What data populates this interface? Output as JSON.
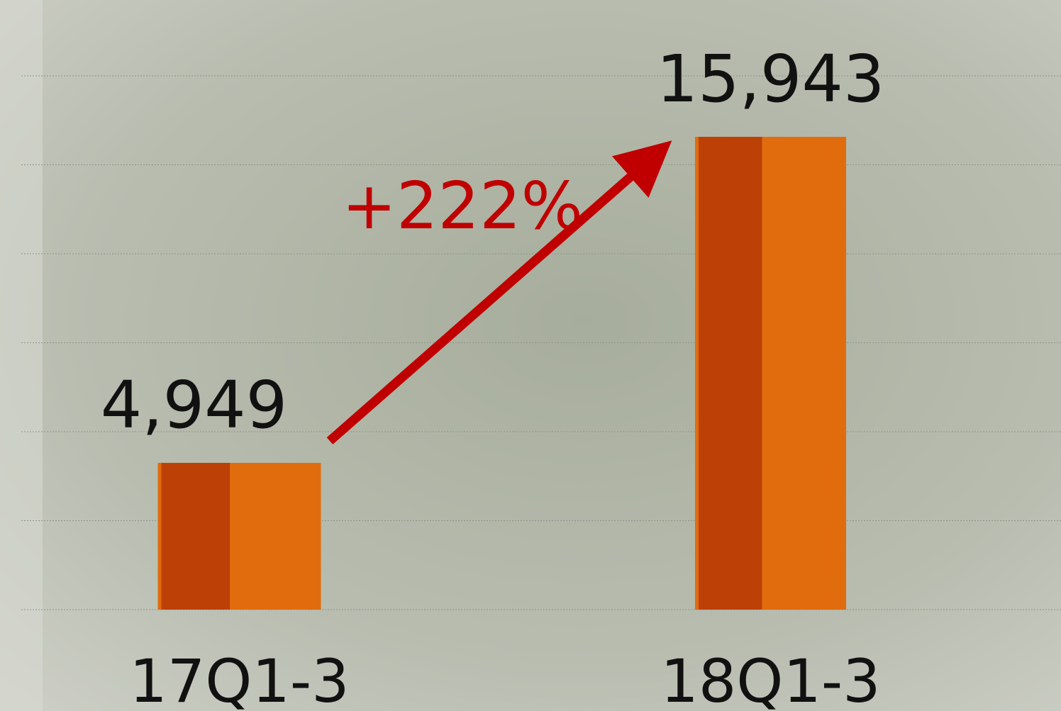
{
  "chart_data": {
    "type": "bar",
    "categories": [
      "17Q1-3",
      "18Q1-3"
    ],
    "values": [
      4949,
      15943
    ],
    "value_labels": [
      "4,949",
      "15,943"
    ],
    "color": "#e06c0e",
    "annotation": "+222%",
    "ylim": [
      0,
      18000
    ],
    "yticks": [
      0,
      3000,
      6000,
      9000,
      12000,
      15000,
      18000
    ],
    "grid": true
  }
}
